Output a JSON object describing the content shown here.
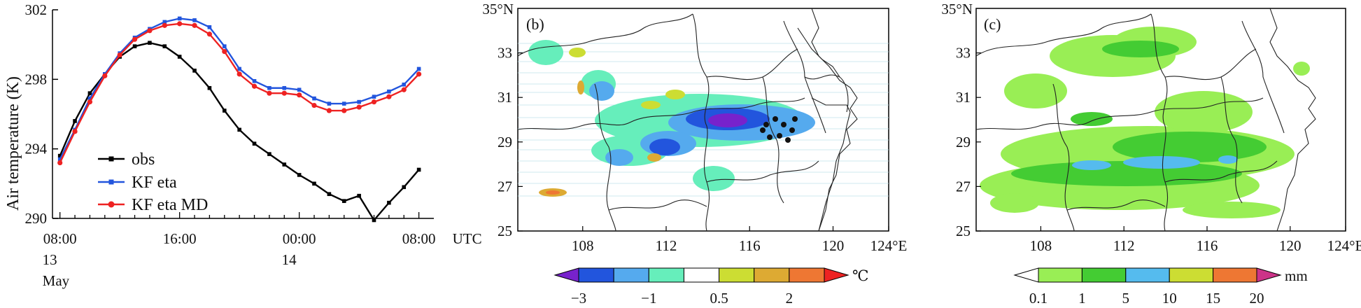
{
  "chart_data": [
    {
      "panel": "a",
      "type": "line",
      "ylabel": "Air temperature (K)",
      "ylim": [
        290,
        302
      ],
      "yticks": [
        290,
        294,
        298,
        302
      ],
      "x_major_ticks": [
        {
          "label": "08:00",
          "sub": [
            "13",
            "May"
          ],
          "hour": 0
        },
        {
          "label": "16:00",
          "sub": [],
          "hour": 8
        },
        {
          "label": "00:00",
          "sub": [
            "14"
          ],
          "hour": 16
        },
        {
          "label": "08:00",
          "sub": [],
          "hour": 24
        }
      ],
      "x_extra_label": "UTC",
      "xlim": [
        -0.5,
        25
      ],
      "x": [
        0,
        1,
        2,
        3,
        4,
        5,
        6,
        7,
        8,
        9,
        10,
        11,
        12,
        13,
        14,
        15,
        16,
        17,
        18,
        19,
        20,
        21,
        22,
        23,
        24
      ],
      "legend": {
        "position": "lower-left"
      },
      "series": [
        {
          "name": "obs",
          "color": "#000000",
          "marker": "square",
          "values": [
            293.6,
            295.6,
            297.2,
            298.3,
            299.3,
            299.9,
            300.1,
            299.9,
            299.3,
            298.5,
            297.5,
            296.2,
            295.1,
            294.3,
            293.7,
            293.1,
            292.5,
            292.0,
            291.4,
            291.0,
            291.3,
            289.9,
            290.9,
            291.8,
            292.8
          ]
        },
        {
          "name": "KF eta",
          "color": "#2255dd",
          "marker": "square",
          "values": [
            293.4,
            295.1,
            296.9,
            298.3,
            299.5,
            300.4,
            300.9,
            301.3,
            301.5,
            301.4,
            301.0,
            299.9,
            298.6,
            297.9,
            297.5,
            297.5,
            297.4,
            296.9,
            296.6,
            296.6,
            296.7,
            297.0,
            297.3,
            297.7,
            298.6
          ]
        },
        {
          "name": "KF eta MD",
          "color": "#ee2222",
          "marker": "circle",
          "values": [
            293.2,
            295.0,
            296.7,
            298.2,
            299.4,
            300.3,
            300.8,
            301.1,
            301.2,
            301.1,
            300.6,
            299.6,
            298.3,
            297.6,
            297.2,
            297.2,
            297.1,
            296.5,
            296.2,
            296.2,
            296.4,
            296.7,
            297.0,
            297.4,
            298.3
          ]
        }
      ]
    },
    {
      "panel": "b",
      "label": "(b)",
      "type": "heatmap",
      "y_top_label": "35°N",
      "yticks": [
        "25",
        "27",
        "29",
        "31",
        "33"
      ],
      "xticks": [
        "108",
        "112",
        "116",
        "120",
        "124°E"
      ],
      "colorbar": {
        "unit": "℃",
        "labels": [
          "−3",
          "−1",
          "0.5",
          "2"
        ],
        "colors": [
          "#7722cc",
          "#2255dd",
          "#55aaee",
          "#66eebb",
          "#ffffff",
          "#ccdd33",
          "#ddaa33",
          "#ee7733",
          "#ee2222"
        ]
      }
    },
    {
      "panel": "c",
      "label": "(c)",
      "type": "heatmap",
      "y_top_label": "35°N",
      "yticks": [
        "25",
        "27",
        "29",
        "31",
        "33"
      ],
      "xticks": [
        "108",
        "112",
        "116",
        "120",
        "124°E"
      ],
      "colorbar": {
        "unit": "mm",
        "labels": [
          "0.1",
          "1",
          "5",
          "10",
          "15",
          "20"
        ],
        "colors": [
          "#ffffff",
          "#99ee55",
          "#44cc33",
          "#55bbee",
          "#ccdd33",
          "#ee7733",
          "#cc3388"
        ]
      }
    }
  ]
}
